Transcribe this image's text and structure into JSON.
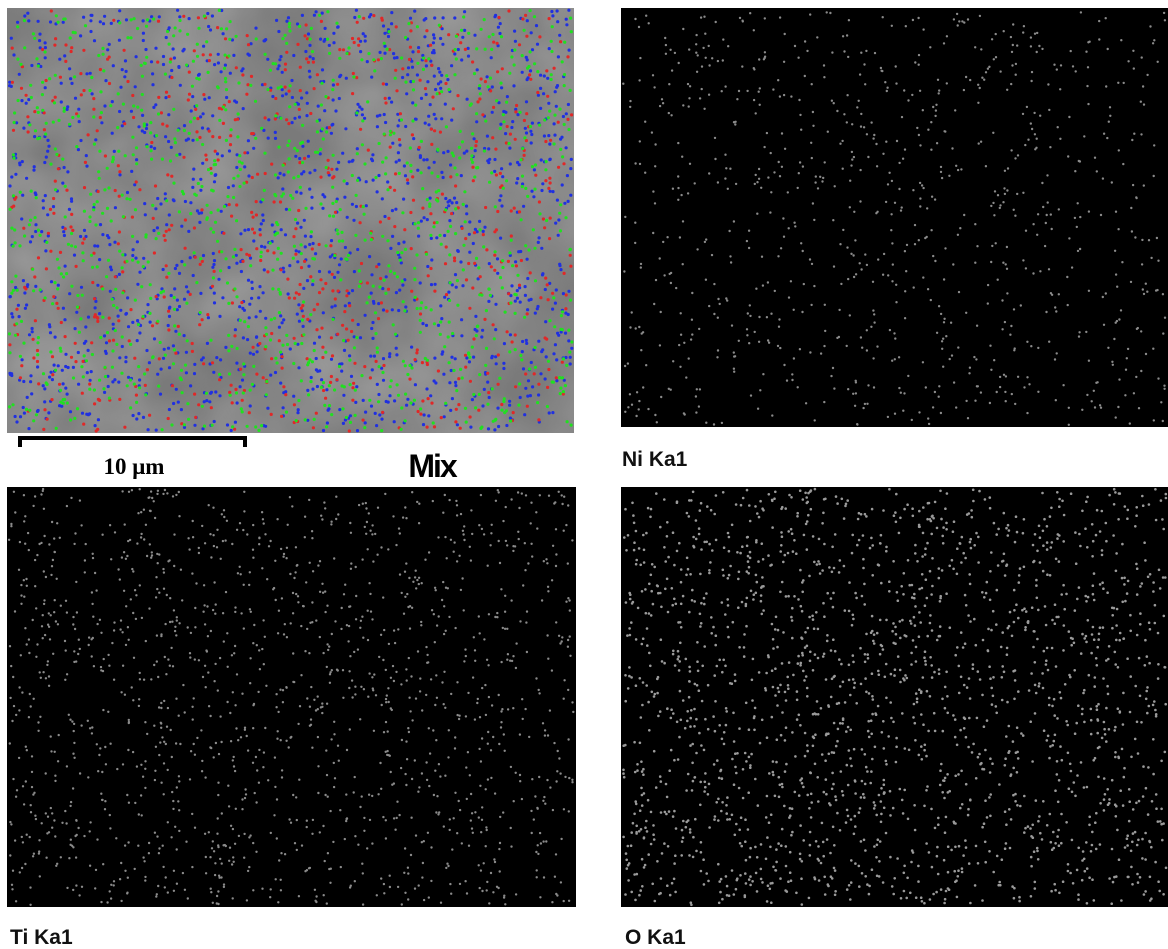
{
  "scale_bar": {
    "label": "10 μm"
  },
  "panels": [
    {
      "label": "Mix"
    },
    {
      "label": "Ni Ka1"
    },
    {
      "label": "Ti Ka1"
    },
    {
      "label": "O Ka1"
    }
  ]
}
